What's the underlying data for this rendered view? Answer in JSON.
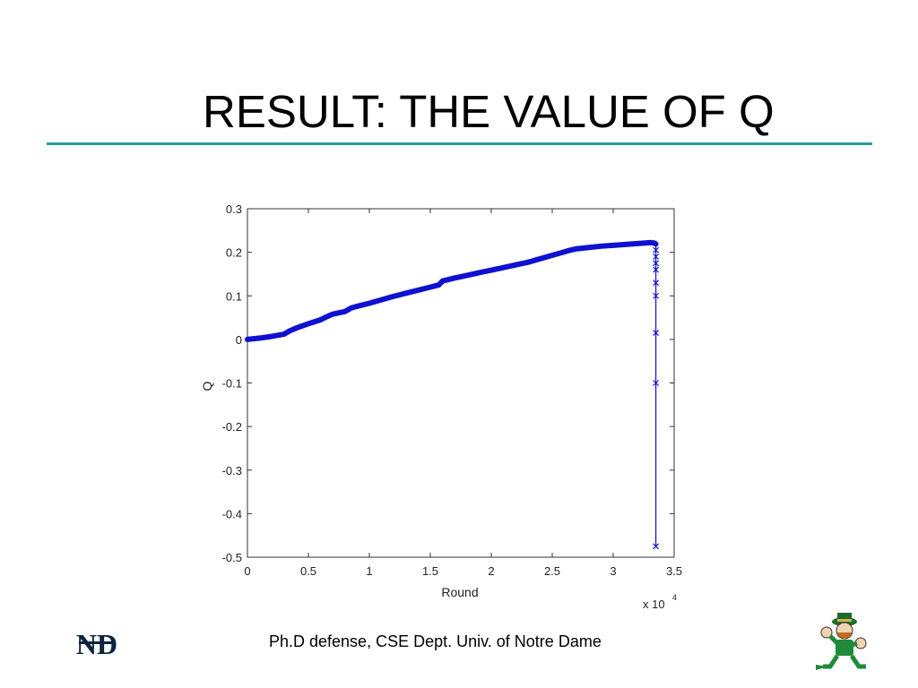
{
  "slide": {
    "title": "RESULT: THE VALUE OF Q",
    "footer": "Ph.D defense, CSE Dept. Univ. of Notre Dame",
    "accent_color": "#2a9d98",
    "left_logo": "notre-dame-nd-monogram",
    "left_logo_text": "ND",
    "right_logo": "fighting-irish-leprechaun"
  },
  "chart_data": {
    "type": "line",
    "title": "",
    "xlabel": "Round",
    "ylabel": "Q",
    "x_multiplier_label": "x 10",
    "x_multiplier_exponent": "4",
    "xlim": [
      0,
      35000
    ],
    "ylim": [
      -0.5,
      0.3
    ],
    "xticks": [
      0,
      5000,
      10000,
      15000,
      20000,
      25000,
      30000,
      35000
    ],
    "xtick_labels": [
      "0",
      "0.5",
      "1",
      "1.5",
      "2",
      "2.5",
      "3",
      "3.5"
    ],
    "yticks": [
      0.3,
      0.2,
      0.1,
      0,
      -0.1,
      -0.2,
      -0.3,
      -0.4,
      -0.5
    ],
    "ytick_labels": [
      "0.3",
      "0.2",
      "0.1",
      "0",
      "-0.1",
      "-0.2",
      "-0.3",
      "-0.4",
      "-0.5"
    ],
    "grid": false,
    "legend": "none",
    "series_color": "#1010d0",
    "marker": "x",
    "series": [
      {
        "x": [
          0,
          1000,
          2000,
          3000,
          3500,
          4000,
          5000,
          6000,
          6500,
          7000,
          8000,
          8500,
          9000,
          10000,
          11000,
          12000,
          13000,
          14000,
          15000,
          15700,
          16000,
          17000,
          18000,
          19000,
          20000,
          21000,
          22000,
          23000,
          24000,
          25000,
          26000,
          26500,
          27000,
          28000,
          29000,
          30000,
          31000,
          32000,
          32500,
          33000,
          33200,
          33400,
          33500
        ],
        "y": [
          0,
          0.003,
          0.007,
          0.012,
          0.02,
          0.026,
          0.036,
          0.045,
          0.052,
          0.058,
          0.064,
          0.072,
          0.076,
          0.083,
          0.091,
          0.099,
          0.106,
          0.113,
          0.12,
          0.125,
          0.134,
          0.141,
          0.147,
          0.153,
          0.159,
          0.165,
          0.171,
          0.177,
          0.185,
          0.193,
          0.201,
          0.205,
          0.208,
          0.211,
          0.214,
          0.216,
          0.218,
          0.22,
          0.221,
          0.222,
          0.222,
          0.221,
          0.219
        ]
      },
      {
        "x": [
          33500,
          33500,
          33500,
          33500,
          33500,
          33500,
          33500,
          33500
        ],
        "y": [
          0.205,
          0.19,
          0.175,
          0.16,
          0.13,
          0.1,
          0.015,
          -0.1
        ]
      },
      {
        "x": [
          33500
        ],
        "y": [
          -0.475
        ]
      }
    ]
  }
}
